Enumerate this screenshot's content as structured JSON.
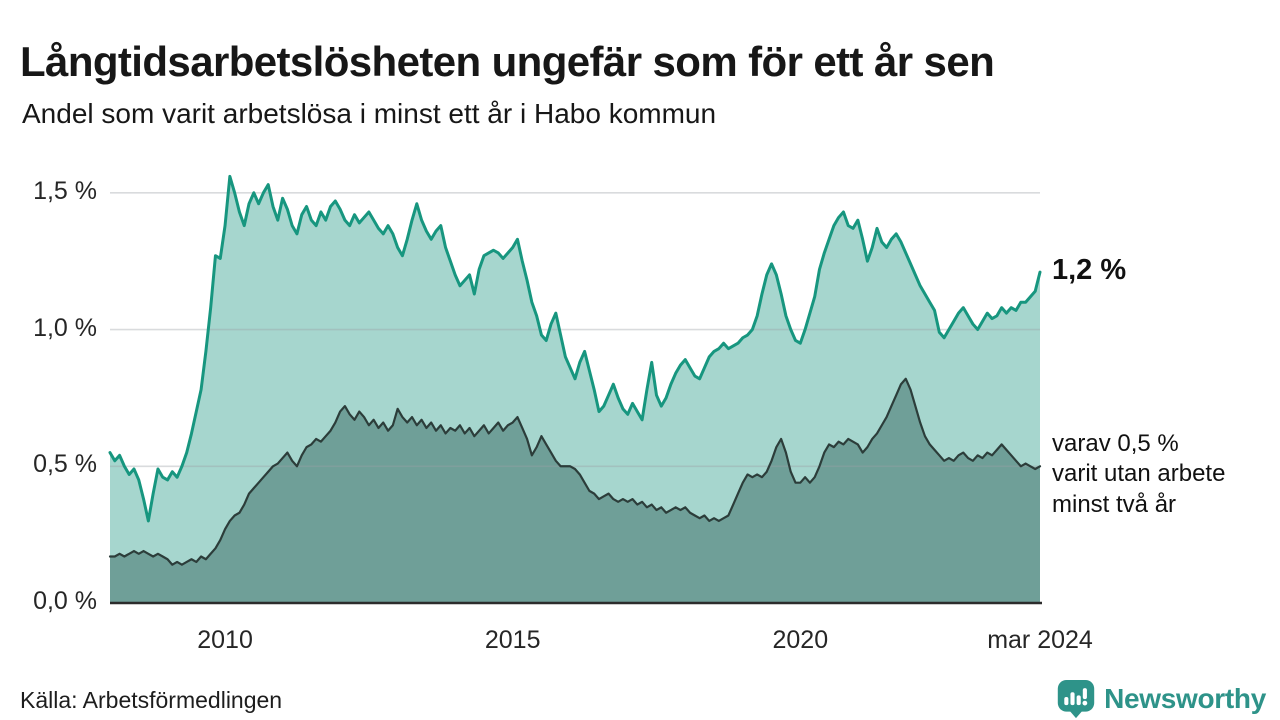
{
  "header": {
    "title": "Långtidsarbetslösheten ungefär som för ett år sen",
    "subtitle": "Andel som varit arbetslösa i minst ett år i Habo kommun"
  },
  "footer": {
    "source": "Källa: Arbetsförmedlingen",
    "brand": "Newsworthy"
  },
  "colors": {
    "series1_line": "#17967F",
    "series1_fill": "#A6D6CE",
    "series2_line": "#2C3D3A",
    "series2_fill": "#6F9F98",
    "gridline": "#9AA0A6",
    "baseline": "#2C2C2C",
    "brand_teal": "#2E9389",
    "text": "#171717"
  },
  "chart_data": {
    "type": "area",
    "title": "Långtidsarbetslösheten ungefär som för ett år sen",
    "subtitle": "Andel som varit arbetslösa i minst ett år i Habo kommun",
    "unit": "%",
    "x_interval": "monthly",
    "x_start": "2008-01",
    "x_end": "2024-03",
    "grid": "horizontal",
    "legend_position": "end-of-line-labels",
    "ylim": [
      0,
      1.62
    ],
    "y_axis": {
      "ticks": [
        {
          "label": "0,0 %",
          "value": 0
        },
        {
          "label": "0,5 %",
          "value": 0.5
        },
        {
          "label": "1,0 %",
          "value": 1
        },
        {
          "label": "1,5 %",
          "value": 1.5
        }
      ]
    },
    "x_axis": {
      "ticks": [
        {
          "label": "2010",
          "month_index": 24
        },
        {
          "label": "2015",
          "month_index": 84
        },
        {
          "label": "2020",
          "month_index": 144
        },
        {
          "label": "mar 2024",
          "month_index": 194
        }
      ]
    },
    "series": [
      {
        "name": "Andel som varit arbetslösa minst ett år",
        "end_label": "1,2 %",
        "end_value": 1.2,
        "line_color": "#17967F",
        "fill_color": "#A6D6CE",
        "values": [
          0.55,
          0.52,
          0.54,
          0.5,
          0.47,
          0.49,
          0.45,
          0.38,
          0.3,
          0.4,
          0.49,
          0.46,
          0.45,
          0.48,
          0.46,
          0.5,
          0.55,
          0.62,
          0.7,
          0.78,
          0.92,
          1.08,
          1.27,
          1.26,
          1.38,
          1.56,
          1.5,
          1.43,
          1.38,
          1.46,
          1.5,
          1.46,
          1.5,
          1.53,
          1.45,
          1.4,
          1.48,
          1.44,
          1.38,
          1.35,
          1.42,
          1.45,
          1.4,
          1.38,
          1.43,
          1.4,
          1.45,
          1.47,
          1.44,
          1.4,
          1.38,
          1.42,
          1.39,
          1.41,
          1.43,
          1.4,
          1.37,
          1.35,
          1.38,
          1.35,
          1.3,
          1.27,
          1.33,
          1.4,
          1.46,
          1.4,
          1.36,
          1.33,
          1.36,
          1.38,
          1.3,
          1.25,
          1.2,
          1.16,
          1.18,
          1.2,
          1.13,
          1.22,
          1.27,
          1.28,
          1.29,
          1.28,
          1.26,
          1.28,
          1.3,
          1.33,
          1.25,
          1.18,
          1.1,
          1.05,
          0.98,
          0.96,
          1.02,
          1.06,
          0.98,
          0.9,
          0.86,
          0.82,
          0.88,
          0.92,
          0.85,
          0.78,
          0.7,
          0.72,
          0.76,
          0.8,
          0.75,
          0.71,
          0.69,
          0.73,
          0.7,
          0.67,
          0.78,
          0.88,
          0.76,
          0.72,
          0.75,
          0.8,
          0.84,
          0.87,
          0.89,
          0.86,
          0.83,
          0.82,
          0.86,
          0.9,
          0.92,
          0.93,
          0.95,
          0.93,
          0.94,
          0.95,
          0.97,
          0.98,
          1.0,
          1.05,
          1.13,
          1.2,
          1.24,
          1.2,
          1.13,
          1.05,
          1.0,
          0.96,
          0.95,
          1.0,
          1.06,
          1.12,
          1.22,
          1.28,
          1.33,
          1.38,
          1.41,
          1.43,
          1.38,
          1.37,
          1.4,
          1.33,
          1.25,
          1.3,
          1.37,
          1.32,
          1.3,
          1.33,
          1.35,
          1.32,
          1.28,
          1.24,
          1.2,
          1.16,
          1.13,
          1.1,
          1.07,
          0.99,
          0.97,
          1.0,
          1.03,
          1.06,
          1.08,
          1.05,
          1.02,
          1.0,
          1.03,
          1.06,
          1.04,
          1.05,
          1.08,
          1.06,
          1.08,
          1.07,
          1.1,
          1.1,
          1.12,
          1.14,
          1.21
        ]
      },
      {
        "name": "Andel som varit arbetslösa minst två år",
        "end_value": 0.5,
        "annotation_lines": [
          "varav 0,5 %",
          "varit utan arbete",
          "minst två år"
        ],
        "line_color": "#2C3D3A",
        "fill_color": "#6F9F98",
        "values": [
          0.17,
          0.17,
          0.18,
          0.17,
          0.18,
          0.19,
          0.18,
          0.19,
          0.18,
          0.17,
          0.18,
          0.17,
          0.16,
          0.14,
          0.15,
          0.14,
          0.15,
          0.16,
          0.15,
          0.17,
          0.16,
          0.18,
          0.2,
          0.23,
          0.27,
          0.3,
          0.32,
          0.33,
          0.36,
          0.4,
          0.42,
          0.44,
          0.46,
          0.48,
          0.5,
          0.51,
          0.53,
          0.55,
          0.52,
          0.5,
          0.54,
          0.57,
          0.58,
          0.6,
          0.59,
          0.61,
          0.63,
          0.66,
          0.7,
          0.72,
          0.69,
          0.67,
          0.7,
          0.68,
          0.65,
          0.67,
          0.64,
          0.66,
          0.63,
          0.65,
          0.71,
          0.68,
          0.66,
          0.68,
          0.65,
          0.67,
          0.64,
          0.66,
          0.63,
          0.65,
          0.62,
          0.64,
          0.63,
          0.65,
          0.62,
          0.64,
          0.61,
          0.63,
          0.65,
          0.62,
          0.64,
          0.66,
          0.63,
          0.65,
          0.66,
          0.68,
          0.64,
          0.6,
          0.54,
          0.57,
          0.61,
          0.58,
          0.55,
          0.52,
          0.5,
          0.5,
          0.5,
          0.49,
          0.47,
          0.44,
          0.41,
          0.4,
          0.38,
          0.39,
          0.4,
          0.38,
          0.37,
          0.38,
          0.37,
          0.38,
          0.36,
          0.37,
          0.35,
          0.36,
          0.34,
          0.35,
          0.33,
          0.34,
          0.35,
          0.34,
          0.35,
          0.33,
          0.32,
          0.31,
          0.32,
          0.3,
          0.31,
          0.3,
          0.31,
          0.32,
          0.36,
          0.4,
          0.44,
          0.47,
          0.46,
          0.47,
          0.46,
          0.48,
          0.52,
          0.57,
          0.6,
          0.55,
          0.48,
          0.44,
          0.44,
          0.46,
          0.44,
          0.46,
          0.5,
          0.55,
          0.58,
          0.57,
          0.59,
          0.58,
          0.6,
          0.59,
          0.58,
          0.55,
          0.57,
          0.6,
          0.62,
          0.65,
          0.68,
          0.72,
          0.76,
          0.8,
          0.82,
          0.78,
          0.72,
          0.66,
          0.61,
          0.58,
          0.56,
          0.54,
          0.52,
          0.53,
          0.52,
          0.54,
          0.55,
          0.53,
          0.52,
          0.54,
          0.53,
          0.55,
          0.54,
          0.56,
          0.58,
          0.56,
          0.54,
          0.52,
          0.5,
          0.51,
          0.5,
          0.49,
          0.5
        ]
      }
    ]
  }
}
